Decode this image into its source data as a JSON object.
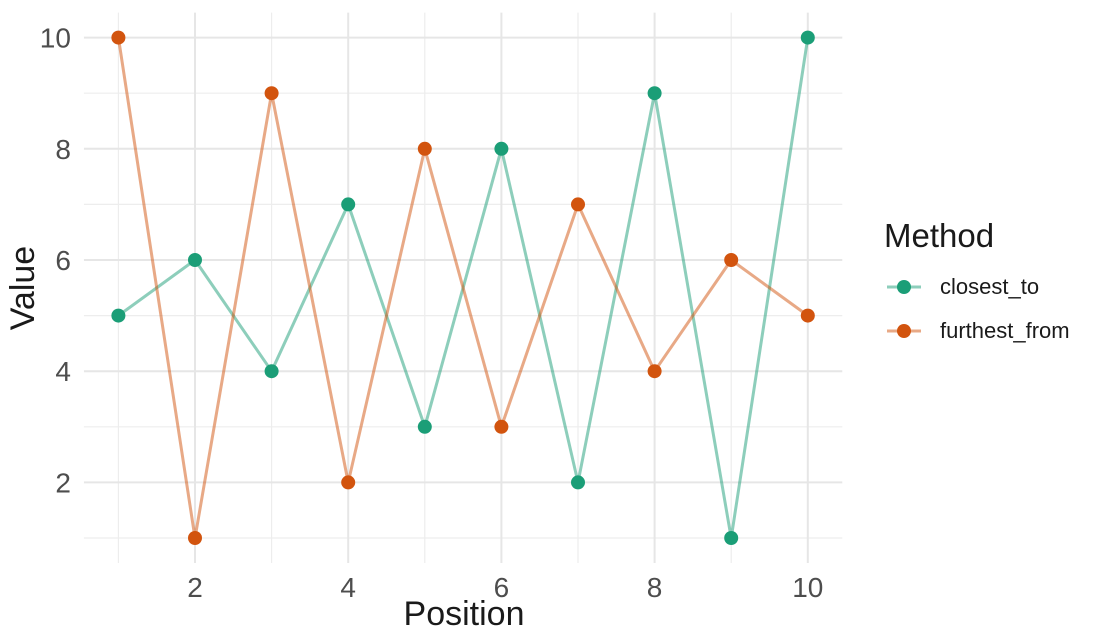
{
  "chart_data": {
    "type": "line",
    "title": "",
    "xlabel": "Position",
    "ylabel": "Value",
    "x": [
      1,
      2,
      3,
      4,
      5,
      6,
      7,
      8,
      9,
      10
    ],
    "series": [
      {
        "name": "closest_to",
        "color": "#1B9E77",
        "values": [
          5,
          6,
          4,
          7,
          3,
          8,
          2,
          9,
          1,
          10
        ]
      },
      {
        "name": "furthest_from",
        "color": "#D2540E",
        "values": [
          10,
          1,
          9,
          2,
          8,
          3,
          7,
          4,
          6,
          5
        ]
      }
    ],
    "xlim": [
      0.55,
      10.45
    ],
    "ylim": [
      0.55,
      10.45
    ],
    "x_ticks": [
      2,
      4,
      6,
      8,
      10
    ],
    "y_ticks": [
      2,
      4,
      6,
      8,
      10
    ],
    "x_minor": [
      1,
      3,
      5,
      7,
      9
    ],
    "y_minor": [
      1,
      3,
      5,
      7,
      9
    ],
    "grid": "on",
    "background": "#FFFFFF",
    "line_opacity": 0.5,
    "point_radius": 7,
    "legend": {
      "title": "Method",
      "position": "right"
    }
  }
}
